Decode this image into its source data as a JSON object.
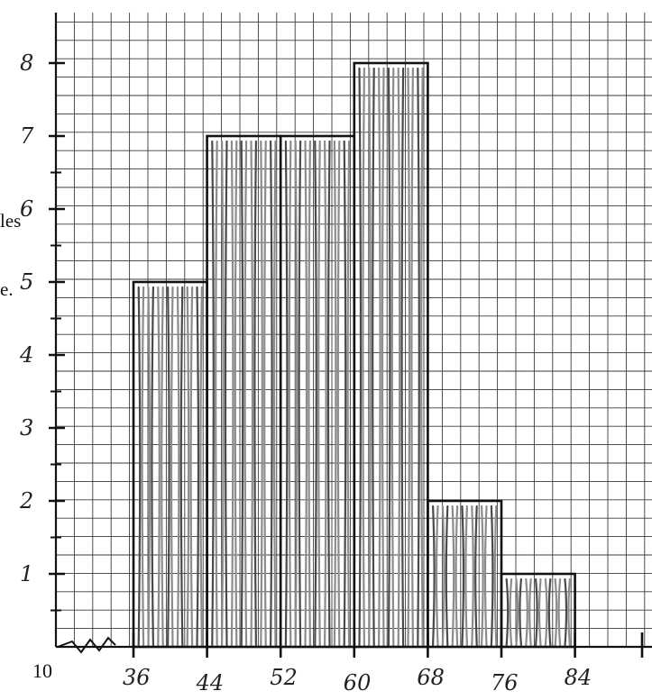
{
  "chart_data": {
    "type": "bar",
    "title": "",
    "xlabel": "",
    "ylabel": "",
    "x_ticks": [
      "36",
      "44",
      "52",
      "60",
      "68",
      "76",
      "84"
    ],
    "y_ticks": [
      "1",
      "2",
      "3",
      "4",
      "5",
      "6",
      "7",
      "8"
    ],
    "bins": [
      {
        "start": 36,
        "end": 44,
        "value": 5
      },
      {
        "start": 44,
        "end": 52,
        "value": 7
      },
      {
        "start": 52,
        "end": 60,
        "value": 7
      },
      {
        "start": 60,
        "end": 68,
        "value": 8
      },
      {
        "start": 68,
        "end": 76,
        "value": 2
      },
      {
        "start": 76,
        "end": 84,
        "value": 1
      }
    ],
    "xlim": [
      29,
      86
    ],
    "ylim": [
      0,
      8.2
    ],
    "grid": true,
    "axis_break": "zigzag at start of x-axis",
    "printed_text": {
      "origin_label": "10",
      "left_margin_fragment_1": "les",
      "left_margin_fragment_2": "e."
    }
  }
}
